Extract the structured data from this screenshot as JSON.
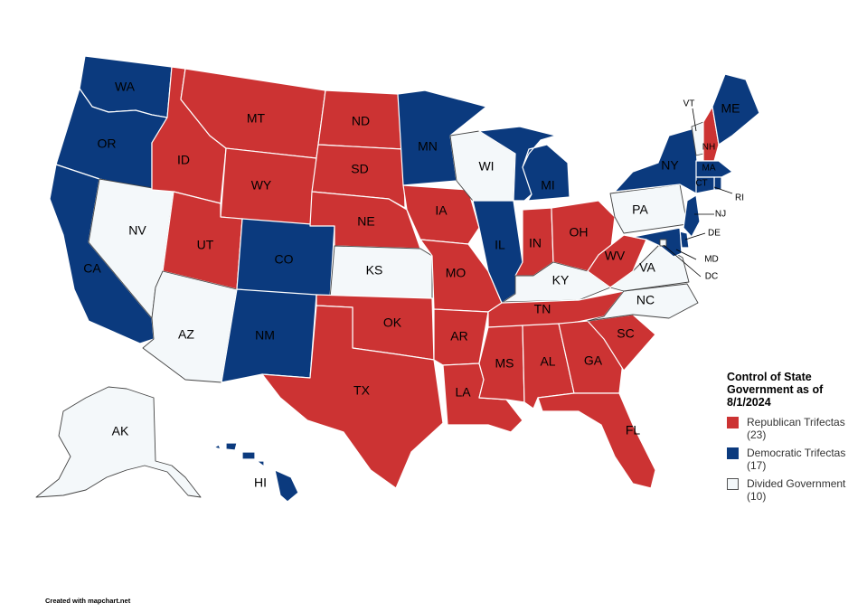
{
  "map": {
    "legend_title": "Control of State Government as of 8/1/2024",
    "legend": [
      {
        "key": "republican",
        "label": "Republican Trifectas (23)",
        "color": "#cc3333"
      },
      {
        "key": "democratic",
        "label": "Democratic Trifectas (17)",
        "color": "#0b3a7e"
      },
      {
        "key": "divided",
        "label": "Divided Government (10)",
        "color": "#f4f8fa"
      }
    ],
    "states": {
      "WA": "democratic",
      "OR": "democratic",
      "CA": "democratic",
      "NV": "divided",
      "ID": "republican",
      "MT": "republican",
      "WY": "republican",
      "UT": "republican",
      "AZ": "divided",
      "CO": "democratic",
      "NM": "democratic",
      "ND": "republican",
      "SD": "republican",
      "NE": "republican",
      "KS": "divided",
      "OK": "republican",
      "TX": "republican",
      "MN": "democratic",
      "IA": "republican",
      "MO": "republican",
      "AR": "republican",
      "LA": "republican",
      "WI": "divided",
      "IL": "democratic",
      "MI": "democratic",
      "IN": "republican",
      "OH": "republican",
      "KY": "divided",
      "TN": "republican",
      "MS": "republican",
      "AL": "republican",
      "GA": "republican",
      "FL": "republican",
      "SC": "republican",
      "NC": "divided",
      "VA": "divided",
      "WV": "republican",
      "PA": "divided",
      "NY": "democratic",
      "VT": "divided",
      "NH": "republican",
      "ME": "democratic",
      "MA": "democratic",
      "RI": "democratic",
      "CT": "democratic",
      "NJ": "democratic",
      "DE": "democratic",
      "MD": "democratic",
      "DC": "divided",
      "AK": "divided",
      "HI": "democratic"
    },
    "labels": [
      "WA",
      "OR",
      "CA",
      "NV",
      "ID",
      "MT",
      "WY",
      "UT",
      "AZ",
      "CO",
      "NM",
      "ND",
      "SD",
      "NE",
      "KS",
      "OK",
      "TX",
      "MN",
      "IA",
      "MO",
      "AR",
      "LA",
      "WI",
      "IL",
      "MI",
      "IN",
      "OH",
      "KY",
      "TN",
      "MS",
      "AL",
      "GA",
      "FL",
      "SC",
      "NC",
      "VA",
      "WV",
      "PA",
      "NY",
      "VT",
      "NH",
      "ME",
      "MA",
      "CT",
      "RI",
      "NJ",
      "DE",
      "MD",
      "DC",
      "AK",
      "HI"
    ]
  },
  "credit": "Created with mapchart.net"
}
